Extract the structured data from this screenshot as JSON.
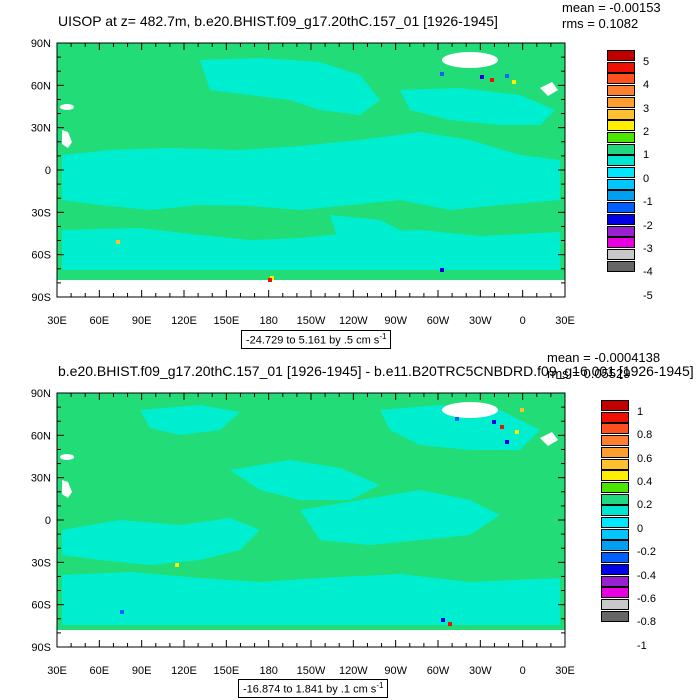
{
  "colors": {
    "ocean_base": "#22dd77",
    "ocean_alt": "#00eed0",
    "land": "#ffffff",
    "frame": "#000000"
  },
  "palette": [
    "#666666",
    "#c8c8c8",
    "#e800e0",
    "#9920d0",
    "#0000e6",
    "#0060ff",
    "#009ff0",
    "#00c8ff",
    "#00e6ff",
    "#00e6d0",
    "#20d880",
    "#4be600",
    "#ffee00",
    "#ffc030",
    "#ff9e30",
    "#ff8030",
    "#ff5020",
    "#ee1000",
    "#c00000"
  ],
  "panels": [
    {
      "title": "UISOP at z= 482.7m, b.e20.BHIST.f09_g17.20thC.157_01 [1926-1945]",
      "mean": "mean = -0.00153",
      "rms": "rms = 0.1082",
      "range_text": "-24.729 to 5.161 by .5 cm s",
      "range_unit_exp": "-1",
      "legend_labels": [
        "5",
        "4",
        "3",
        "2",
        "1",
        "0",
        "-1",
        "-2",
        "-3",
        "-4",
        "-5"
      ]
    },
    {
      "title": "b.e20.BHIST.f09_g17.20thC.157_01 [1926-1945] - b.e11.B20TRC5CNBDRD.f09_g16.001 [1926-1945]",
      "mean": "mean = -0.0004138",
      "rms": "rms = 0.05529",
      "range_text": "-16.874 to 1.841 by .1 cm s",
      "range_unit_exp": "-1",
      "legend_labels": [
        "1",
        "0.8",
        "0.6",
        "0.4",
        "0.2",
        "0",
        "-0.2",
        "-0.4",
        "-0.6",
        "-0.8",
        "-1"
      ]
    }
  ],
  "lat_ticks": [
    "90N",
    "60N",
    "30N",
    "0",
    "30S",
    "60S",
    "90S"
  ],
  "lon_ticks": [
    "30E",
    "60E",
    "90E",
    "120E",
    "150E",
    "180",
    "150W",
    "120W",
    "90W",
    "60W",
    "30W",
    "0",
    "30E"
  ]
}
